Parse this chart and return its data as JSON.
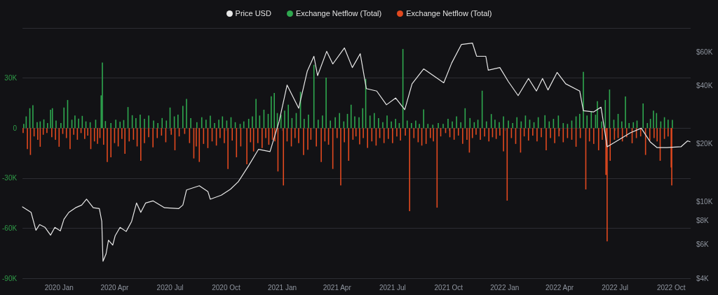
{
  "chart_data": {
    "type": "bar",
    "legend": "top",
    "grid": "y",
    "log": "y2",
    "xlim": [
      "2019-11-02",
      "2022-11-02"
    ],
    "xticks": [
      {
        "value": "2020-01-01",
        "label": "2020 Jan"
      },
      {
        "value": "2020-04-01",
        "label": "2020 Apr"
      },
      {
        "value": "2020-07-01",
        "label": "2020 Jul"
      },
      {
        "value": "2020-10-01",
        "label": "2020 Oct"
      },
      {
        "value": "2021-01-01",
        "label": "2021 Jan"
      },
      {
        "value": "2021-04-01",
        "label": "2021 Apr"
      },
      {
        "value": "2021-07-01",
        "label": "2021 Jul"
      },
      {
        "value": "2021-10-01",
        "label": "2021 Oct"
      },
      {
        "value": "2022-01-01",
        "label": "2022 Jan"
      },
      {
        "value": "2022-04-01",
        "label": "2022 Apr"
      },
      {
        "value": "2022-07-01",
        "label": "2022 Jul"
      },
      {
        "value": "2022-10-01",
        "label": "2022 Oct"
      }
    ],
    "ylim": [
      -90000,
      60000
    ],
    "yticks": [
      {
        "value": -90000,
        "label": "-90K"
      },
      {
        "value": -60000,
        "label": "-60K"
      },
      {
        "value": -30000,
        "label": "-30K"
      },
      0,
      {
        "value": 30000,
        "label": "30K"
      },
      {
        "value": 60000,
        "label": null
      }
    ],
    "y2lim": [
      4000,
      80000
    ],
    "y2ticks": [
      {
        "value": 4000,
        "label": "$4K"
      },
      {
        "value": 6000,
        "label": "$6K"
      },
      {
        "value": 8000,
        "label": "$8K"
      },
      {
        "value": 10000,
        "label": "$10K"
      },
      {
        "value": 20000,
        "label": "$20K"
      },
      {
        "value": 40000,
        "label": "$40K"
      },
      {
        "value": 60000,
        "label": "$60K"
      }
    ],
    "series": [
      {
        "name": "Price USD",
        "type": "line",
        "axis": "y2",
        "color": "#e8e8e8",
        "x": [
          "2019-11-02",
          "2019-11-16",
          "2019-11-24",
          "2019-11-30",
          "2019-12-09",
          "2019-12-18",
          "2019-12-25",
          "2020-01-03",
          "2020-01-09",
          "2020-01-17",
          "2020-01-28",
          "2020-02-07",
          "2020-02-15",
          "2020-02-26",
          "2020-03-07",
          "2020-03-11",
          "2020-03-13",
          "2020-03-18",
          "2020-03-22",
          "2020-03-29",
          "2020-04-02",
          "2020-04-10",
          "2020-04-20",
          "2020-04-29",
          "2020-05-07",
          "2020-05-14",
          "2020-05-22",
          "2020-06-03",
          "2020-06-22",
          "2020-07-15",
          "2020-07-22",
          "2020-07-28",
          "2020-08-18",
          "2020-09-01",
          "2020-09-05",
          "2020-09-23",
          "2020-10-08",
          "2020-10-21",
          "2020-11-07",
          "2020-11-23",
          "2020-12-12",
          "2020-12-27",
          "2021-01-09",
          "2021-01-28",
          "2021-02-11",
          "2021-02-22",
          "2021-02-28",
          "2021-03-15",
          "2021-03-25",
          "2021-04-13",
          "2021-04-26",
          "2021-05-09",
          "2021-05-19",
          "2021-06-05",
          "2021-06-21",
          "2021-07-06",
          "2021-07-21",
          "2021-08-02",
          "2021-08-21",
          "2021-09-09",
          "2021-09-23",
          "2021-10-06",
          "2021-10-22",
          "2021-11-09",
          "2021-11-16",
          "2021-12-01",
          "2021-12-05",
          "2021-12-24",
          "2022-01-07",
          "2022-01-23",
          "2022-02-09",
          "2022-02-22",
          "2022-03-04",
          "2022-03-13",
          "2022-03-28",
          "2022-04-11",
          "2022-05-04",
          "2022-05-10",
          "2022-05-27",
          "2022-06-08",
          "2022-06-18",
          "2022-07-01",
          "2022-07-26",
          "2022-08-13",
          "2022-08-28",
          "2022-09-08",
          "2022-09-24",
          "2022-10-17",
          "2022-10-28",
          "2022-11-01"
        ],
        "values": [
          9400,
          8800,
          7100,
          7600,
          7350,
          6700,
          7350,
          7050,
          8100,
          8800,
          9300,
          9600,
          10300,
          9300,
          9200,
          7900,
          4900,
          5350,
          6300,
          5950,
          6650,
          7350,
          7000,
          7900,
          9850,
          8800,
          9850,
          10100,
          9300,
          9200,
          9600,
          11500,
          12100,
          11300,
          10300,
          10800,
          11600,
          12700,
          15400,
          18700,
          18200,
          26200,
          40400,
          30600,
          47600,
          57000,
          45200,
          60500,
          52000,
          63000,
          49800,
          58800,
          38700,
          37600,
          31900,
          34600,
          30100,
          41000,
          49000,
          44500,
          41500,
          52600,
          65700,
          66800,
          57000,
          57000,
          48300,
          49800,
          42100,
          35600,
          43700,
          37600,
          43700,
          38100,
          47000,
          41000,
          37600,
          29700,
          29300,
          31000,
          19300,
          20400,
          22800,
          24100,
          20400,
          19100,
          19100,
          19300,
          20700,
          20500
        ]
      },
      {
        "name": "Exchange Netflow (Total)",
        "color": "#2fa84f",
        "x": [
          "2019-11-04",
          "2019-11-08",
          "2019-11-14",
          "2019-11-19",
          "2019-11-26",
          "2019-12-01",
          "2019-12-07",
          "2019-12-13",
          "2019-12-18",
          "2019-12-21",
          "2019-12-27",
          "2020-01-04",
          "2020-01-09",
          "2020-01-15",
          "2020-01-22",
          "2020-01-27",
          "2020-02-02",
          "2020-02-08",
          "2020-02-14",
          "2020-02-21",
          "2020-03-01",
          "2020-03-10",
          "2020-03-12",
          "2020-03-17",
          "2020-03-26",
          "2020-04-03",
          "2020-04-10",
          "2020-04-16",
          "2020-04-23",
          "2020-04-30",
          "2020-05-06",
          "2020-05-13",
          "2020-05-20",
          "2020-05-27",
          "2020-06-04",
          "2020-06-11",
          "2020-06-18",
          "2020-06-25",
          "2020-07-01",
          "2020-07-08",
          "2020-07-14",
          "2020-07-22",
          "2020-07-28",
          "2020-08-04",
          "2020-08-14",
          "2020-08-22",
          "2020-08-29",
          "2020-09-05",
          "2020-09-12",
          "2020-09-19",
          "2020-09-25",
          "2020-10-02",
          "2020-10-09",
          "2020-10-16",
          "2020-10-24",
          "2020-10-30",
          "2020-11-07",
          "2020-11-13",
          "2020-11-19",
          "2020-11-25",
          "2020-12-02",
          "2020-12-09",
          "2020-12-14",
          "2020-12-19",
          "2020-12-24",
          "2020-12-30",
          "2021-01-05",
          "2021-01-11",
          "2021-01-17",
          "2021-01-24",
          "2021-01-31",
          "2021-02-06",
          "2021-02-13",
          "2021-02-22",
          "2021-03-01",
          "2021-03-08",
          "2021-03-14",
          "2021-03-21",
          "2021-03-29",
          "2021-04-05",
          "2021-04-12",
          "2021-04-18",
          "2021-04-24",
          "2021-04-30",
          "2021-05-07",
          "2021-05-13",
          "2021-05-18",
          "2021-05-25",
          "2021-06-01",
          "2021-06-08",
          "2021-06-15",
          "2021-06-22",
          "2021-06-29",
          "2021-07-06",
          "2021-07-12",
          "2021-07-18",
          "2021-07-25",
          "2021-08-01",
          "2021-08-08",
          "2021-08-14",
          "2021-08-21",
          "2021-08-28",
          "2021-09-05",
          "2021-09-14",
          "2021-09-22",
          "2021-09-30",
          "2021-10-07",
          "2021-10-14",
          "2021-10-21",
          "2021-10-28",
          "2021-11-05",
          "2021-11-12",
          "2021-11-18",
          "2021-11-25",
          "2021-12-02",
          "2021-12-10",
          "2021-12-16",
          "2021-12-23",
          "2021-12-30",
          "2022-01-07",
          "2022-01-14",
          "2022-01-21",
          "2022-01-28",
          "2022-02-04",
          "2022-02-11",
          "2022-02-18",
          "2022-02-25",
          "2022-03-08",
          "2022-03-15",
          "2022-03-22",
          "2022-03-30",
          "2022-04-07",
          "2022-04-14",
          "2022-04-21",
          "2022-04-28",
          "2022-05-04",
          "2022-05-10",
          "2022-05-16",
          "2022-05-23",
          "2022-05-30",
          "2022-06-02",
          "2022-06-09",
          "2022-06-15",
          "2022-06-22",
          "2022-06-29",
          "2022-07-06",
          "2022-07-12",
          "2022-07-18",
          "2022-07-24",
          "2022-07-31",
          "2022-08-06",
          "2022-08-16",
          "2022-08-23",
          "2022-08-28",
          "2022-09-02",
          "2022-09-07",
          "2022-09-14",
          "2022-09-20",
          "2022-09-26",
          "2022-10-03"
        ],
        "values": [
          2500,
          7000,
          11900,
          13700,
          3500,
          4000,
          5200,
          3000,
          11000,
          11900,
          4500,
          3000,
          12300,
          16800,
          5000,
          7500,
          5600,
          7300,
          4000,
          3500,
          5000,
          19600,
          39300,
          4200,
          3000,
          5000,
          3800,
          4800,
          12600,
          7700,
          6000,
          8000,
          5500,
          7500,
          4500,
          3000,
          6000,
          4500,
          12300,
          7000,
          8000,
          13300,
          17500,
          6000,
          3500,
          6500,
          5000,
          7400,
          3000,
          5000,
          7000,
          4500,
          6500,
          3500,
          2500,
          4000,
          5500,
          7000,
          17500,
          7500,
          11000,
          8500,
          19000,
          21000,
          9000,
          8000,
          10500,
          14000,
          6000,
          9000,
          21700,
          5500,
          8000,
          37900,
          5000,
          7500,
          30200,
          4500,
          6500,
          9000,
          4000,
          8500,
          14000,
          7000,
          6500,
          11900,
          29500,
          7500,
          9000,
          6000,
          3500,
          7500,
          4000,
          5500,
          3000,
          47400,
          4500,
          3000,
          4500,
          2500,
          11200,
          2500,
          2000,
          3000,
          2500,
          5500,
          4000,
          7000,
          3500,
          11900,
          6000,
          3500,
          5000,
          22400,
          4000,
          8400,
          5000,
          3500,
          7000,
          4500,
          3000,
          6500,
          4000,
          7500,
          5000,
          3500,
          6500,
          7700,
          4000,
          5500,
          7500,
          3000,
          2500,
          4500,
          7000,
          8500,
          33700,
          7500,
          10000,
          8000,
          16100,
          4000,
          16800,
          23100,
          5000,
          8500,
          4000,
          18900,
          3000,
          3500,
          4500,
          14700,
          3000,
          5500,
          10500,
          9000,
          4000,
          6500,
          5000,
          4900
        ]
      },
      {
        "name": "Exchange Netflow (Total)",
        "color": "#e2491f",
        "x": [
          "2019-11-03",
          "2019-11-10",
          "2019-11-15",
          "2019-11-21",
          "2019-11-27",
          "2019-12-01",
          "2019-12-06",
          "2019-12-12",
          "2019-12-20",
          "2019-12-26",
          "2020-01-01",
          "2020-01-07",
          "2020-01-13",
          "2020-01-19",
          "2020-01-25",
          "2020-01-31",
          "2020-02-06",
          "2020-02-12",
          "2020-02-17",
          "2020-02-22",
          "2020-02-28",
          "2020-03-04",
          "2020-03-08",
          "2020-03-14",
          "2020-03-20",
          "2020-03-26",
          "2020-04-01",
          "2020-04-07",
          "2020-04-13",
          "2020-04-18",
          "2020-04-25",
          "2020-05-02",
          "2020-05-08",
          "2020-05-14",
          "2020-05-20",
          "2020-05-27",
          "2020-06-03",
          "2020-06-10",
          "2020-06-17",
          "2020-06-24",
          "2020-07-03",
          "2020-07-09",
          "2020-07-16",
          "2020-07-25",
          "2020-08-02",
          "2020-08-09",
          "2020-08-13",
          "2020-08-18",
          "2020-08-25",
          "2020-09-01",
          "2020-09-08",
          "2020-09-15",
          "2020-09-21",
          "2020-09-28",
          "2020-10-04",
          "2020-10-11",
          "2020-10-18",
          "2020-10-25",
          "2020-11-04",
          "2020-11-10",
          "2020-11-15",
          "2020-11-22",
          "2020-11-29",
          "2020-12-05",
          "2020-12-10",
          "2020-12-16",
          "2020-12-20",
          "2020-12-25",
          "2021-01-03",
          "2021-01-09",
          "2021-01-16",
          "2021-01-22",
          "2021-01-28",
          "2021-02-05",
          "2021-02-12",
          "2021-02-17",
          "2021-02-26",
          "2021-03-06",
          "2021-03-12",
          "2021-03-18",
          "2021-03-25",
          "2021-04-01",
          "2021-04-07",
          "2021-04-13",
          "2021-04-20",
          "2021-04-27",
          "2021-05-02",
          "2021-05-08",
          "2021-05-14",
          "2021-05-21",
          "2021-05-28",
          "2021-06-04",
          "2021-06-10",
          "2021-06-17",
          "2021-06-24",
          "2021-07-01",
          "2021-07-08",
          "2021-07-14",
          "2021-07-22",
          "2021-07-29",
          "2021-08-05",
          "2021-08-12",
          "2021-08-18",
          "2021-08-25",
          "2021-09-01",
          "2021-09-06",
          "2021-09-12",
          "2021-09-18",
          "2021-09-26",
          "2021-10-03",
          "2021-10-10",
          "2021-10-17",
          "2021-10-24",
          "2021-10-31",
          "2021-11-04",
          "2021-11-09",
          "2021-11-15",
          "2021-11-22",
          "2021-11-29",
          "2021-12-06",
          "2021-12-12",
          "2021-12-18",
          "2021-12-24",
          "2021-12-30",
          "2022-01-05",
          "2022-01-12",
          "2022-01-19",
          "2022-01-27",
          "2022-02-02",
          "2022-02-09",
          "2022-02-16",
          "2022-02-23",
          "2022-03-02",
          "2022-03-10",
          "2022-03-17",
          "2022-03-24",
          "2022-03-31",
          "2022-04-07",
          "2022-04-14",
          "2022-04-21",
          "2022-04-28",
          "2022-05-05",
          "2022-05-14",
          "2022-05-20",
          "2022-05-27",
          "2022-06-04",
          "2022-06-10",
          "2022-06-16",
          "2022-06-18",
          "2022-06-23",
          "2022-06-30",
          "2022-07-06",
          "2022-07-13",
          "2022-07-20",
          "2022-07-29",
          "2022-08-05",
          "2022-08-12",
          "2022-08-20",
          "2022-08-27",
          "2022-09-03",
          "2022-09-08",
          "2022-09-13",
          "2022-09-20",
          "2022-09-26",
          "2022-10-01",
          "2022-10-02"
        ],
        "values": [
          -3000,
          -12600,
          -16100,
          -5000,
          -7000,
          -11200,
          -4000,
          -3000,
          -5500,
          -7000,
          -11200,
          -3500,
          -6000,
          -12600,
          -4000,
          -7000,
          -3000,
          -6500,
          -4500,
          -12600,
          -8000,
          -9500,
          -6000,
          -10000,
          -20300,
          -17500,
          -9000,
          -11000,
          -6500,
          -15400,
          -8000,
          -7000,
          -11000,
          -19600,
          -9000,
          -5500,
          -11500,
          -6000,
          -4500,
          -8500,
          -4000,
          -13300,
          -5000,
          -3500,
          -9000,
          -18200,
          -11000,
          -20300,
          -9500,
          -12000,
          -8000,
          -10500,
          -6000,
          -9000,
          -24500,
          -7500,
          -17500,
          -11000,
          -21700,
          -8500,
          -14000,
          -9000,
          -12000,
          -6000,
          -10000,
          -7000,
          -8000,
          -26000,
          -34400,
          -8000,
          -11000,
          -6000,
          -9000,
          -16100,
          -13000,
          -7000,
          -11000,
          -20300,
          -8000,
          -10000,
          -24500,
          -6000,
          -34400,
          -8500,
          -19600,
          -7000,
          -5000,
          -9800,
          -6000,
          -11900,
          -8000,
          -10500,
          -6000,
          -9000,
          -6500,
          -9000,
          -5000,
          -7500,
          -4500,
          -49800,
          -6000,
          -8500,
          -10500,
          -9500,
          -6000,
          -8000,
          -47700,
          -5000,
          -3000,
          -5500,
          -7000,
          -4500,
          -9500,
          -7000,
          -14700,
          -6000,
          -4000,
          -7000,
          -5000,
          -8000,
          -5500,
          -6500,
          -4500,
          -14000,
          -43500,
          -6000,
          -9500,
          -14700,
          -5000,
          -7500,
          -4500,
          -8000,
          -5500,
          -13300,
          -6000,
          -9000,
          -5000,
          -8500,
          -6000,
          -7000,
          -11200,
          -6000,
          -36800,
          -8000,
          -9500,
          -13300,
          -7000,
          -28100,
          -67900,
          -19600,
          -7000,
          -6000,
          -8000,
          -5500,
          -9100,
          -6000,
          -5000,
          -16100,
          -7500,
          -6000,
          -8000,
          -19600,
          -6500,
          -5000,
          -23600,
          -34400
        ]
      }
    ]
  }
}
